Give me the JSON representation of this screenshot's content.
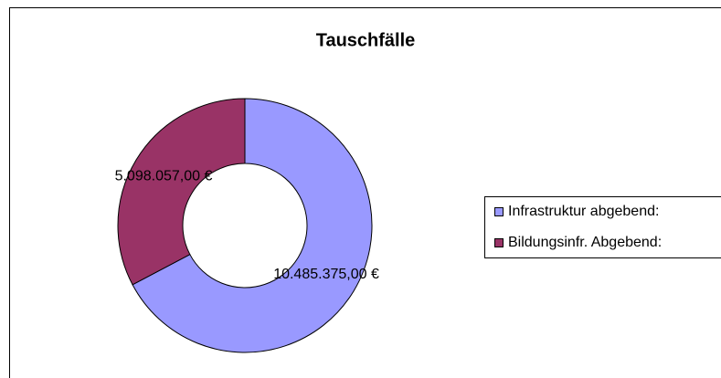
{
  "chart_data": {
    "type": "donut",
    "title": "Tauschfälle",
    "categories": [
      "Infrastruktur abgebend:",
      "Bildungsinfr. Abgebend:"
    ],
    "values": [
      10485375,
      5098057
    ],
    "value_labels": [
      "10.485.375,00 €",
      "5.098.057,00 €"
    ],
    "colors": [
      "#9999ff",
      "#993366"
    ],
    "legend": "right"
  }
}
